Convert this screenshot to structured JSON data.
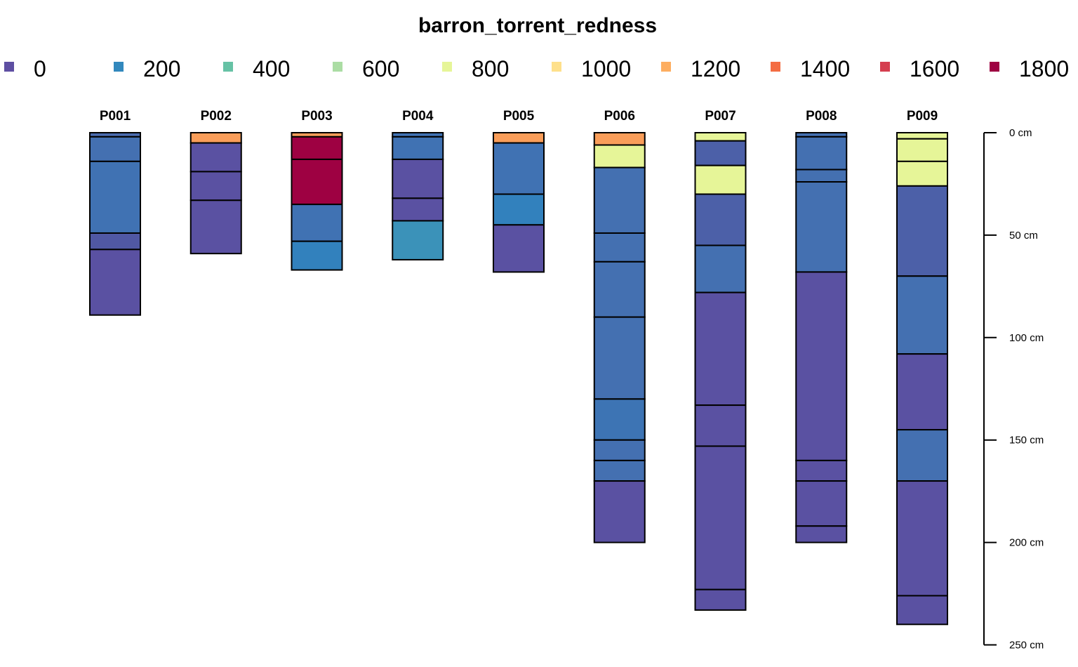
{
  "chart_data": {
    "type": "bar",
    "title": "barron_torrent_redness",
    "legend": {
      "placement": "top",
      "entries": [
        {
          "label": "0",
          "color": "#5E4FA2"
        },
        {
          "label": "200",
          "color": "#3288BD"
        },
        {
          "label": "400",
          "color": "#66C2A5"
        },
        {
          "label": "600",
          "color": "#ABDDA4"
        },
        {
          "label": "800",
          "color": "#E6F598"
        },
        {
          "label": "1000",
          "color": "#FEE08B"
        },
        {
          "label": "1200",
          "color": "#FDAE61"
        },
        {
          "label": "1400",
          "color": "#F46D43"
        },
        {
          "label": "1600",
          "color": "#D53E4F"
        },
        {
          "label": "1800",
          "color": "#9E0142"
        }
      ]
    },
    "depth_axis": {
      "unit": "cm",
      "range": [
        0,
        250
      ],
      "ticks": [
        0,
        50,
        100,
        150,
        200,
        250
      ],
      "tick_labels": [
        "0 cm",
        "50 cm",
        "100 cm",
        "150 cm",
        "200 cm",
        "250 cm"
      ]
    },
    "profiles": [
      {
        "id": "P001",
        "horizons": [
          {
            "top": 0,
            "bottom": 2,
            "color": "#4A6BAE"
          },
          {
            "top": 2,
            "bottom": 14,
            "color": "#4470B1"
          },
          {
            "top": 14,
            "bottom": 49,
            "color": "#4072B3"
          },
          {
            "top": 49,
            "bottom": 57,
            "color": "#5058A4"
          },
          {
            "top": 57,
            "bottom": 89,
            "color": "#5A51A2"
          }
        ]
      },
      {
        "id": "P002",
        "horizons": [
          {
            "top": 0,
            "bottom": 5,
            "color": "#F99D59"
          },
          {
            "top": 5,
            "bottom": 19,
            "color": "#5A51A2"
          },
          {
            "top": 19,
            "bottom": 33,
            "color": "#5A51A2"
          },
          {
            "top": 33,
            "bottom": 59,
            "color": "#5A51A2"
          }
        ]
      },
      {
        "id": "P003",
        "horizons": [
          {
            "top": 0,
            "bottom": 2,
            "color": "#F99D59"
          },
          {
            "top": 2,
            "bottom": 13,
            "color": "#9E0142"
          },
          {
            "top": 13,
            "bottom": 35,
            "color": "#9E0142"
          },
          {
            "top": 35,
            "bottom": 53,
            "color": "#4072B3"
          },
          {
            "top": 53,
            "bottom": 67,
            "color": "#3281BD"
          }
        ]
      },
      {
        "id": "P004",
        "horizons": [
          {
            "top": 0,
            "bottom": 2,
            "color": "#4072B3"
          },
          {
            "top": 2,
            "bottom": 13,
            "color": "#4072B3"
          },
          {
            "top": 13,
            "bottom": 32,
            "color": "#5A51A2"
          },
          {
            "top": 32,
            "bottom": 43,
            "color": "#5A51A2"
          },
          {
            "top": 43,
            "bottom": 62,
            "color": "#3B92B9"
          }
        ]
      },
      {
        "id": "P005",
        "horizons": [
          {
            "top": 0,
            "bottom": 5,
            "color": "#F99D59"
          },
          {
            "top": 5,
            "bottom": 30,
            "color": "#4072B3"
          },
          {
            "top": 30,
            "bottom": 45,
            "color": "#3281BD"
          },
          {
            "top": 45,
            "bottom": 68,
            "color": "#5A51A2"
          }
        ]
      },
      {
        "id": "P006",
        "horizons": [
          {
            "top": 0,
            "bottom": 6,
            "color": "#F99D59"
          },
          {
            "top": 6,
            "bottom": 17,
            "color": "#E6F598"
          },
          {
            "top": 17,
            "bottom": 49,
            "color": "#4470B1"
          },
          {
            "top": 49,
            "bottom": 63,
            "color": "#4470B1"
          },
          {
            "top": 63,
            "bottom": 90,
            "color": "#4470B1"
          },
          {
            "top": 90,
            "bottom": 130,
            "color": "#4470B1"
          },
          {
            "top": 130,
            "bottom": 150,
            "color": "#3D74B4"
          },
          {
            "top": 150,
            "bottom": 160,
            "color": "#4470B1"
          },
          {
            "top": 160,
            "bottom": 170,
            "color": "#4470B1"
          },
          {
            "top": 170,
            "bottom": 200,
            "color": "#5A51A2"
          }
        ]
      },
      {
        "id": "P007",
        "horizons": [
          {
            "top": 0,
            "bottom": 4,
            "color": "#E6F598"
          },
          {
            "top": 4,
            "bottom": 16,
            "color": "#4C60A8"
          },
          {
            "top": 16,
            "bottom": 30,
            "color": "#E6F598"
          },
          {
            "top": 30,
            "bottom": 55,
            "color": "#4C60A8"
          },
          {
            "top": 55,
            "bottom": 78,
            "color": "#4470B1"
          },
          {
            "top": 78,
            "bottom": 133,
            "color": "#5A51A2"
          },
          {
            "top": 133,
            "bottom": 153,
            "color": "#5A51A2"
          },
          {
            "top": 153,
            "bottom": 223,
            "color": "#5A51A2"
          },
          {
            "top": 223,
            "bottom": 233,
            "color": "#5A51A2"
          }
        ]
      },
      {
        "id": "P008",
        "horizons": [
          {
            "top": 0,
            "bottom": 2,
            "color": "#4470B1"
          },
          {
            "top": 2,
            "bottom": 18,
            "color": "#4470B1"
          },
          {
            "top": 18,
            "bottom": 24,
            "color": "#4470B1"
          },
          {
            "top": 24,
            "bottom": 68,
            "color": "#4470B1"
          },
          {
            "top": 68,
            "bottom": 160,
            "color": "#5A51A2"
          },
          {
            "top": 160,
            "bottom": 170,
            "color": "#5A51A2"
          },
          {
            "top": 170,
            "bottom": 192,
            "color": "#5A51A2"
          },
          {
            "top": 192,
            "bottom": 200,
            "color": "#5A51A2"
          }
        ]
      },
      {
        "id": "P009",
        "horizons": [
          {
            "top": 0,
            "bottom": 3,
            "color": "#E6F598"
          },
          {
            "top": 3,
            "bottom": 14,
            "color": "#E6F598"
          },
          {
            "top": 14,
            "bottom": 26,
            "color": "#E6F598"
          },
          {
            "top": 26,
            "bottom": 70,
            "color": "#4C60A8"
          },
          {
            "top": 70,
            "bottom": 108,
            "color": "#4470B1"
          },
          {
            "top": 108,
            "bottom": 145,
            "color": "#5A51A2"
          },
          {
            "top": 145,
            "bottom": 170,
            "color": "#4470B1"
          },
          {
            "top": 170,
            "bottom": 226,
            "color": "#5A51A2"
          },
          {
            "top": 226,
            "bottom": 240,
            "color": "#5A51A2"
          }
        ]
      }
    ]
  }
}
